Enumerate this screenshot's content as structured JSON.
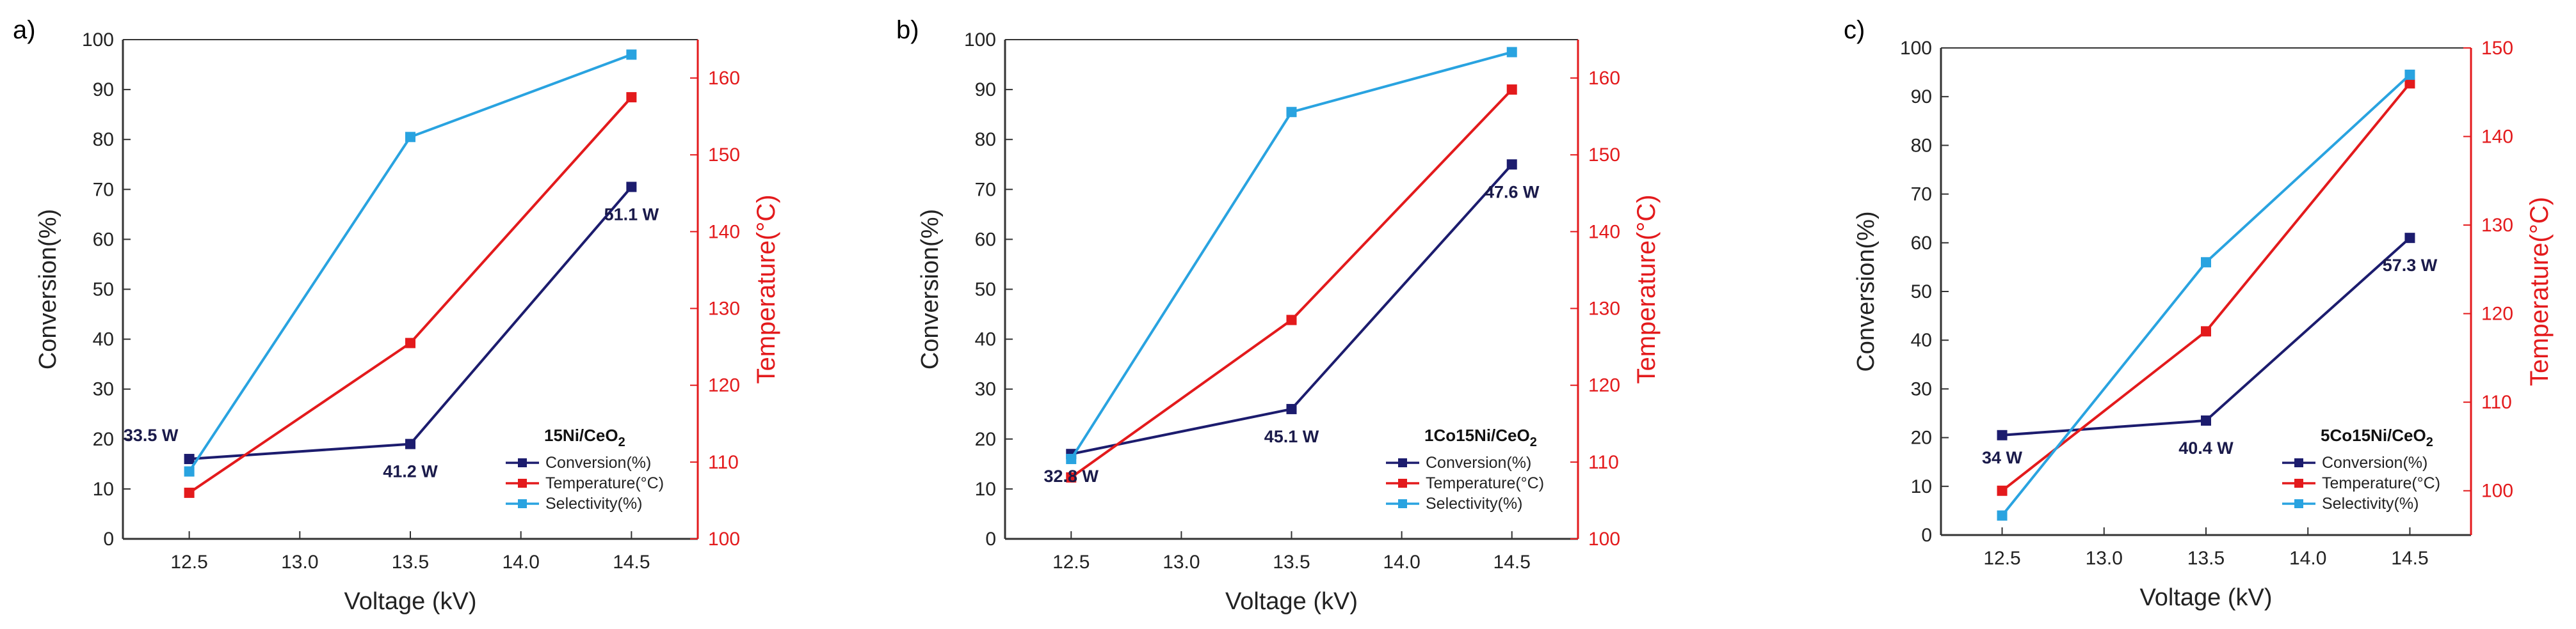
{
  "colors": {
    "conversion": "#1c1c6e",
    "temperature": "#e31a1c",
    "selectivity": "#29a3e0",
    "axis": "#333333",
    "right_axis": "#e31a1c"
  },
  "chart_data": [
    {
      "panel_label": "a)",
      "type": "line",
      "title": "",
      "xlabel": "Voltage (kV)",
      "ylabel": "Conversion(%)",
      "ylabel_right": "Temperature(°C)",
      "x": [
        12.5,
        13.5,
        14.5
      ],
      "xlim": [
        12.2,
        14.8
      ],
      "xticks": [
        "12.5",
        "13.0",
        "13.5",
        "14.0",
        "14.5"
      ],
      "ylim": [
        0,
        100
      ],
      "yticks": [
        "0",
        "10",
        "20",
        "30",
        "40",
        "50",
        "60",
        "70",
        "80",
        "90",
        "100"
      ],
      "ylim_right": [
        100,
        165
      ],
      "yticks_right": [
        "100",
        "110",
        "120",
        "130",
        "140",
        "150",
        "160"
      ],
      "series": [
        {
          "name": "Conversion(%)",
          "axis": "left",
          "values": [
            16,
            19,
            70.5
          ]
        },
        {
          "name": "Temperature(°C)",
          "axis": "right",
          "values": [
            106,
            125.5,
            157.5
          ]
        },
        {
          "name": "Selectivity(%)",
          "axis": "left",
          "values": [
            13.5,
            80.5,
            97
          ]
        }
      ],
      "annotations": [
        "33.5 W",
        "41.2 W",
        "51.1 W"
      ],
      "legend_title": "15Ni/CeO",
      "legend_title_sub": "2",
      "legend_labels": [
        "Conversion(%)",
        "Temperature(°C)",
        "Selectivity(%)"
      ]
    },
    {
      "panel_label": "b)",
      "type": "line",
      "title": "",
      "xlabel": "Voltage (kV)",
      "ylabel": "Conversion(%)",
      "ylabel_right": "Temperature(°C)",
      "x": [
        12.5,
        13.5,
        14.5
      ],
      "xlim": [
        12.2,
        14.8
      ],
      "xticks": [
        "12.5",
        "13.0",
        "13.5",
        "14.0",
        "14.5"
      ],
      "ylim": [
        0,
        100
      ],
      "yticks": [
        "0",
        "10",
        "20",
        "30",
        "40",
        "50",
        "60",
        "70",
        "80",
        "90",
        "100"
      ],
      "ylim_right": [
        100,
        165
      ],
      "yticks_right": [
        "100",
        "110",
        "120",
        "130",
        "140",
        "150",
        "160"
      ],
      "series": [
        {
          "name": "Conversion(%)",
          "axis": "left",
          "values": [
            17,
            26,
            75
          ]
        },
        {
          "name": "Temperature(°C)",
          "axis": "right",
          "values": [
            108,
            128.5,
            158.5
          ]
        },
        {
          "name": "Selectivity(%)",
          "axis": "left",
          "values": [
            16,
            85.5,
            97.5
          ]
        }
      ],
      "annotations": [
        "32.8 W",
        "45.1 W",
        "47.6 W"
      ],
      "legend_title": "1Co15Ni/CeO",
      "legend_title_sub": "2",
      "legend_labels": [
        "Conversion(%)",
        "Temperature(°C)",
        "Selectivity(%)"
      ]
    },
    {
      "panel_label": "c)",
      "type": "line",
      "title": "",
      "xlabel": "Voltage (kV)",
      "ylabel": "Conversion(%)",
      "ylabel_right": "Temperature(°C)",
      "x": [
        12.5,
        13.5,
        14.5
      ],
      "xlim": [
        12.2,
        14.8
      ],
      "xticks": [
        "12.5",
        "13.0",
        "13.5",
        "14.0",
        "14.5"
      ],
      "ylim": [
        0,
        100
      ],
      "yticks": [
        "0",
        "10",
        "20",
        "30",
        "40",
        "50",
        "60",
        "70",
        "80",
        "90",
        "100"
      ],
      "ylim_right": [
        95,
        150
      ],
      "yticks_right": [
        "100",
        "110",
        "120",
        "130",
        "140",
        "150"
      ],
      "series": [
        {
          "name": "Conversion(%)",
          "axis": "left",
          "values": [
            20.5,
            23.5,
            61
          ]
        },
        {
          "name": "Temperature(°C)",
          "axis": "right",
          "values": [
            100,
            118,
            146
          ]
        },
        {
          "name": "Selectivity(%)",
          "axis": "left",
          "values": [
            4,
            56,
            94.5
          ]
        }
      ],
      "annotations": [
        "34 W",
        "40.4 W",
        "57.3 W"
      ],
      "legend_title": "5Co15Ni/CeO",
      "legend_title_sub": "2",
      "legend_labels": [
        "Conversion(%)",
        "Temperature(°C)",
        "Selectivity(%)"
      ]
    }
  ]
}
